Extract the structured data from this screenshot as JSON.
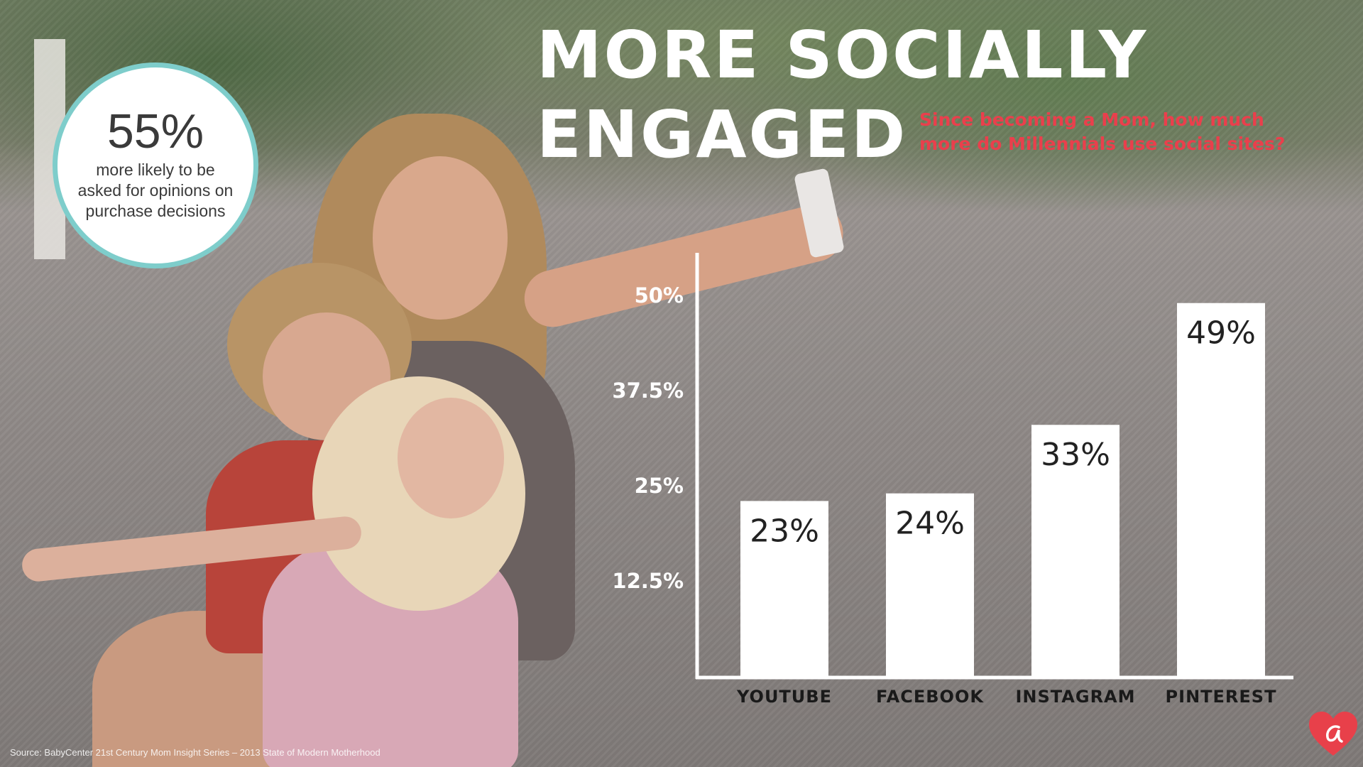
{
  "header": {
    "title_line1": "MORE SOCIALLY",
    "title_line2": "ENGAGED",
    "subtitle": "Since becoming a Mom, how much more do Millennials use social sites?"
  },
  "stat": {
    "number": "55%",
    "text": "more likely to be asked for opinions on purchase decisions"
  },
  "source": "Source: BabyCenter 21st Century Mom Insight Series – 2013 State of Modern Motherhood",
  "colors": {
    "title": "#ffffff",
    "subtitle": "#ea3f4c",
    "circle_border": "#7ecdcb",
    "bars": "#ffffff",
    "logo": "#e8404a"
  },
  "logo_icon": "heart-logo-icon",
  "chart_data": {
    "type": "bar",
    "categories": [
      "YOUTUBE",
      "FACEBOOK",
      "INSTAGRAM",
      "PINTEREST"
    ],
    "values": [
      23,
      24,
      33,
      49
    ],
    "value_labels": [
      "23%",
      "24%",
      "33%",
      "49%"
    ],
    "ticks": [
      12.5,
      25,
      37.5,
      50
    ],
    "tick_labels": [
      "12.5%",
      "25%",
      "37.5%",
      "50%"
    ],
    "ylim": [
      0,
      50
    ],
    "title": "",
    "xlabel": "",
    "ylabel": "",
    "grid": false,
    "legend": "none"
  }
}
